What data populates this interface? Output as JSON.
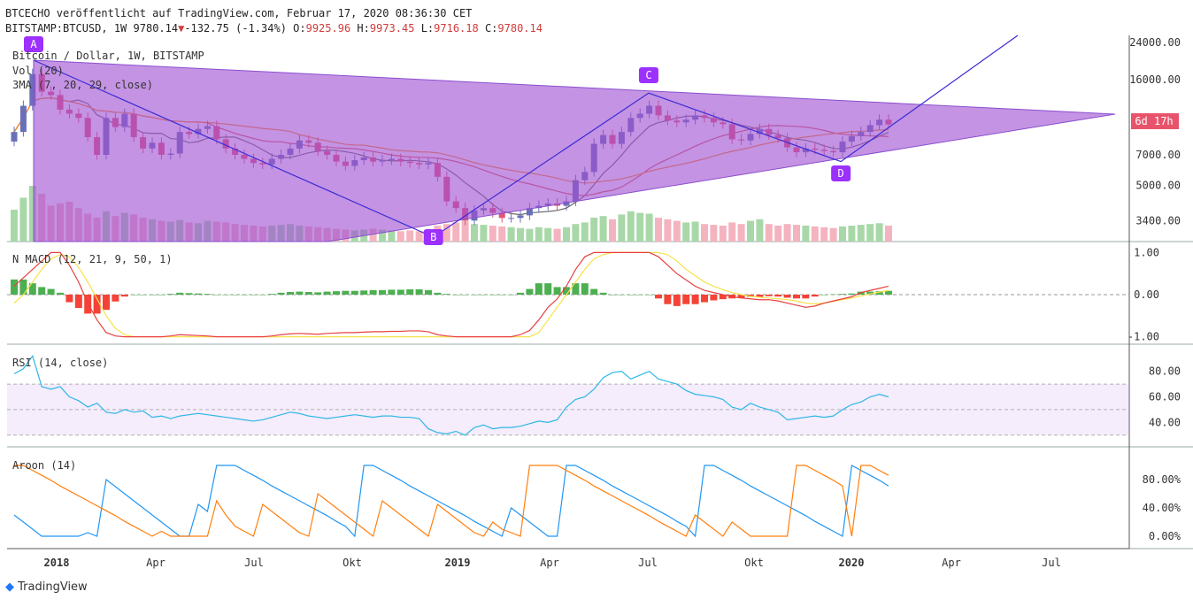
{
  "header": {
    "published": "BTCECHO veröffentlicht auf TradingView.com, Februar 17, 2020 08:36:30 CET",
    "symbol": "BITSTAMP:BTCUSD, 1W",
    "last": "9780.14",
    "change": "-132.75 (-1.34%)",
    "open_label": "O:",
    "open": "9925.96",
    "high_label": "H:",
    "high": "9973.45",
    "low_label": "L:",
    "low": "9716.18",
    "close_label": "C:",
    "close": "9780.14"
  },
  "brand": "TradingView",
  "colors": {
    "up": "#6a70b8",
    "down": "#e55373",
    "pattern": "rgba(160,80,210,0.62)",
    "trend": "#3b2bd6",
    "ma_fast": "#6b6b6b",
    "ma_mid": "#e05a5a",
    "ma_slow": "#ff8c1a",
    "macd": "#e84040",
    "signal": "#f7e24a",
    "hist_up": "#4caf50",
    "hist_down": "#f44336",
    "rsi": "#2eb8e6",
    "aroon_up": "#2196f3",
    "aroon_down": "#ff7f0e"
  },
  "chart_data": [
    {
      "type": "candlestick",
      "title": "Bitcoin / Dollar, 1W, BITSTAMP",
      "legend": [
        "Vol (20)",
        "3MA (7, 20, 29, close)"
      ],
      "y_scale": "log",
      "ylim": [
        2700,
        26000
      ],
      "y_ticks": [
        "24000.00",
        "16000.00",
        "7000.00",
        "5000.00",
        "3400.00"
      ],
      "price_badge": "6d 17h",
      "x_ticks": [
        "2018",
        "Apr",
        "Jul",
        "Okt",
        "2019",
        "Apr",
        "Jul",
        "Okt",
        "2020",
        "Apr",
        "Jul"
      ],
      "points": [
        {
          "label": "A",
          "date": "2017-12-18",
          "value": 19100
        },
        {
          "label": "B",
          "date": "2018-12-10",
          "value": 3200
        },
        {
          "label": "C",
          "date": "2019-06-24",
          "value": 13800
        },
        {
          "label": "D",
          "date": "2019-12-16",
          "value": 6500
        }
      ],
      "close_series": [
        9000,
        12000,
        17000,
        14000,
        13500,
        11500,
        11000,
        10500,
        8500,
        7000,
        10500,
        9500,
        11000,
        8500,
        7500,
        8000,
        7000,
        7100,
        9000,
        8800,
        9300,
        9600,
        8300,
        7500,
        7000,
        6700,
        6400,
        6300,
        6700,
        7000,
        7500,
        8200,
        8000,
        7300,
        7000,
        6500,
        6200,
        6600,
        6800,
        6500,
        6600,
        6700,
        6500,
        6400,
        6300,
        6400,
        5500,
        4200,
        3900,
        3400,
        3800,
        3900,
        3700,
        3500,
        3500,
        3600,
        3900,
        4000,
        4100,
        4000,
        4200,
        5300,
        5800,
        7900,
        8700,
        7900,
        9000,
        10500,
        11000,
        12000,
        10800,
        10200,
        10000,
        10300,
        10800,
        10500,
        10000,
        9800,
        8300,
        8200,
        8800,
        9300,
        8700,
        8400,
        7600,
        7200,
        7500,
        7400,
        7300,
        7200,
        8100,
        8600,
        9000,
        9700,
        10300,
        9780
      ],
      "volume_series": [
        40,
        55,
        70,
        60,
        45,
        48,
        50,
        42,
        35,
        30,
        38,
        32,
        36,
        34,
        30,
        28,
        26,
        25,
        27,
        24,
        23,
        26,
        25,
        24,
        22,
        21,
        20,
        19,
        20,
        21,
        22,
        20,
        19,
        18,
        17,
        16,
        15,
        14,
        15,
        16,
        15,
        14,
        13,
        14,
        13,
        14,
        20,
        22,
        24,
        26,
        22,
        21,
        20,
        19,
        18,
        17,
        16,
        18,
        17,
        16,
        18,
        22,
        24,
        30,
        32,
        28,
        34,
        38,
        36,
        35,
        30,
        28,
        26,
        24,
        25,
        22,
        21,
        20,
        24,
        22,
        26,
        28,
        22,
        20,
        22,
        21,
        20,
        19,
        18,
        17,
        19,
        20,
        21,
        22,
        23,
        20
      ]
    },
    {
      "type": "line",
      "title": "N MACD (12, 21, 9, 50, 1)",
      "ylim": [
        -1.05,
        1.05
      ],
      "y_ticks": [
        "1.00",
        "0.00",
        "-1.00"
      ],
      "macd": [
        0.2,
        0.4,
        0.6,
        0.8,
        1.0,
        1.0,
        0.7,
        0.3,
        -0.2,
        -0.6,
        -0.9,
        -0.98,
        -1.0,
        -1.0,
        -1.0,
        -1.0,
        -1.0,
        -0.98,
        -0.95,
        -0.96,
        -0.97,
        -0.98,
        -1.0,
        -1.0,
        -1.0,
        -1.0,
        -1.0,
        -1.0,
        -0.98,
        -0.95,
        -0.93,
        -0.92,
        -0.93,
        -0.94,
        -0.92,
        -0.91,
        -0.9,
        -0.9,
        -0.89,
        -0.88,
        -0.88,
        -0.87,
        -0.87,
        -0.86,
        -0.86,
        -0.88,
        -0.95,
        -0.98,
        -1.0,
        -1.0,
        -1.0,
        -1.0,
        -1.0,
        -1.0,
        -1.0,
        -0.95,
        -0.85,
        -0.6,
        -0.3,
        -0.1,
        0.2,
        0.6,
        0.9,
        1.0,
        1.0,
        1.0,
        1.0,
        1.0,
        1.0,
        1.0,
        0.9,
        0.7,
        0.5,
        0.35,
        0.2,
        0.1,
        0.05,
        0.0,
        -0.05,
        -0.08,
        -0.1,
        -0.12,
        -0.12,
        -0.15,
        -0.2,
        -0.25,
        -0.3,
        -0.27,
        -0.2,
        -0.15,
        -0.1,
        -0.05,
        0.05,
        0.1,
        0.15,
        0.2
      ],
      "signal": [
        -0.2,
        0.0,
        0.3,
        0.6,
        0.85,
        0.95,
        0.9,
        0.65,
        0.3,
        -0.1,
        -0.5,
        -0.8,
        -0.95,
        -1.0,
        -1.0,
        -1.0,
        -1.0,
        -1.0,
        -1.0,
        -1.0,
        -1.0,
        -1.0,
        -1.0,
        -1.0,
        -1.0,
        -1.0,
        -1.0,
        -1.0,
        -1.0,
        -1.0,
        -1.0,
        -1.0,
        -1.0,
        -1.0,
        -1.0,
        -1.0,
        -1.0,
        -1.0,
        -1.0,
        -1.0,
        -1.0,
        -1.0,
        -1.0,
        -1.0,
        -1.0,
        -1.0,
        -1.0,
        -1.0,
        -1.0,
        -1.0,
        -1.0,
        -1.0,
        -1.0,
        -1.0,
        -1.0,
        -1.0,
        -1.0,
        -0.9,
        -0.6,
        -0.3,
        0.0,
        0.3,
        0.6,
        0.85,
        0.95,
        1.0,
        1.0,
        1.0,
        1.0,
        1.0,
        1.0,
        0.95,
        0.8,
        0.6,
        0.45,
        0.3,
        0.2,
        0.12,
        0.05,
        0.0,
        -0.04,
        -0.06,
        -0.08,
        -0.1,
        -0.12,
        -0.15,
        -0.2,
        -0.22,
        -0.2,
        -0.16,
        -0.12,
        -0.08,
        -0.03,
        0.02,
        0.06,
        0.1
      ]
    },
    {
      "type": "line",
      "title": "RSI (14, close)",
      "ylim": [
        25,
        95
      ],
      "y_ticks": [
        "80.00",
        "60.00",
        "40.00"
      ],
      "values": [
        78,
        82,
        92,
        68,
        66,
        68,
        60,
        57,
        52,
        55,
        48,
        47,
        50,
        48,
        49,
        44,
        45,
        43,
        45,
        46,
        47,
        46,
        45,
        44,
        43,
        42,
        41,
        42,
        44,
        46,
        48,
        47,
        45,
        44,
        43,
        44,
        45,
        46,
        45,
        44,
        45,
        45,
        44,
        44,
        43,
        35,
        32,
        31,
        33,
        30,
        36,
        38,
        35,
        36,
        36,
        37,
        39,
        41,
        40,
        42,
        52,
        58,
        60,
        66,
        75,
        79,
        80,
        74,
        77,
        80,
        74,
        72,
        70,
        65,
        62,
        61,
        60,
        58,
        52,
        50,
        55,
        52,
        50,
        48,
        42,
        43,
        44,
        45,
        44,
        45,
        50,
        54,
        56,
        60,
        62,
        60
      ]
    },
    {
      "type": "line",
      "title": "Aroon (14)",
      "ylim": [
        -10,
        115
      ],
      "y_ticks": [
        "80.00%",
        "40.00%",
        "0.00%"
      ],
      "series": [
        {
          "name": "up",
          "values": [
            30,
            20,
            10,
            0,
            0,
            0,
            0,
            0,
            5,
            0,
            80,
            70,
            60,
            50,
            40,
            30,
            20,
            10,
            0,
            0,
            45,
            35,
            100,
            100,
            100,
            93,
            86,
            79,
            71,
            64,
            57,
            50,
            43,
            36,
            29,
            21,
            14,
            0,
            100,
            100,
            93,
            86,
            79,
            71,
            64,
            57,
            50,
            43,
            36,
            29,
            21,
            14,
            7,
            0,
            40,
            30,
            20,
            10,
            0,
            0,
            100,
            100,
            93,
            86,
            79,
            71,
            64,
            57,
            50,
            43,
            36,
            29,
            21,
            14,
            0,
            100,
            100,
            93,
            86,
            79,
            71,
            64,
            57,
            50,
            43,
            36,
            29,
            21,
            14,
            7,
            0,
            100,
            93,
            86,
            79,
            71
          ]
        },
        {
          "name": "down",
          "values": [
            100,
            100,
            93,
            86,
            79,
            71,
            64,
            57,
            50,
            43,
            36,
            29,
            21,
            14,
            7,
            0,
            7,
            0,
            0,
            0,
            0,
            0,
            50,
            30,
            14,
            7,
            0,
            45,
            35,
            25,
            15,
            5,
            0,
            60,
            50,
            40,
            30,
            20,
            10,
            0,
            50,
            40,
            30,
            20,
            10,
            0,
            45,
            35,
            25,
            15,
            5,
            0,
            20,
            10,
            5,
            0,
            100,
            100,
            100,
            100,
            93,
            86,
            79,
            71,
            64,
            57,
            50,
            43,
            36,
            29,
            21,
            14,
            7,
            0,
            30,
            20,
            10,
            0,
            20,
            10,
            0,
            0,
            0,
            0,
            0,
            100,
            100,
            93,
            86,
            79,
            71,
            0,
            100,
            100,
            93,
            86
          ]
        }
      ]
    }
  ]
}
